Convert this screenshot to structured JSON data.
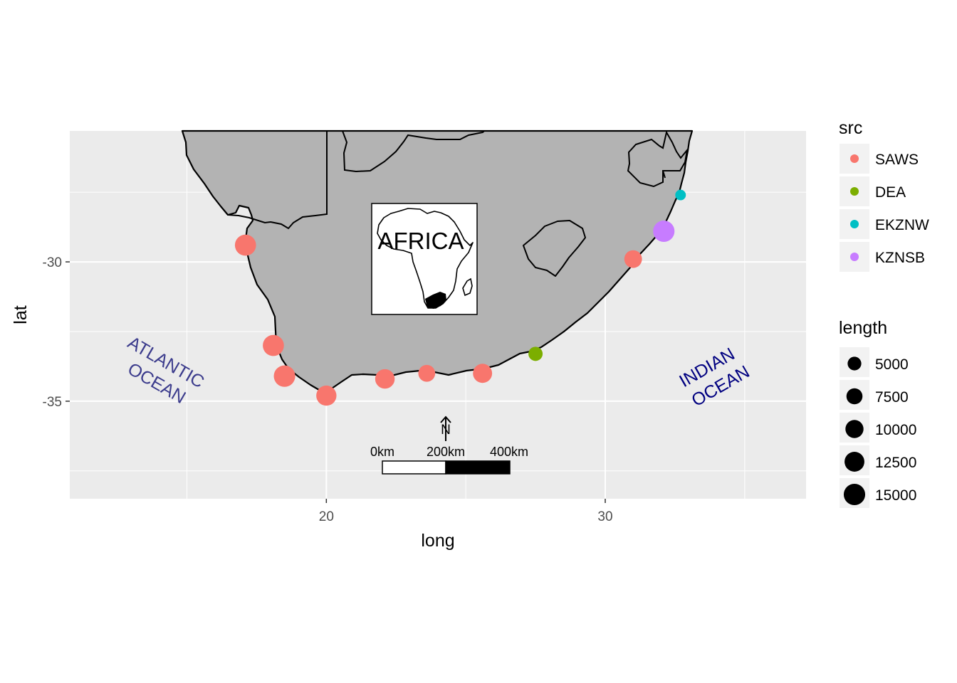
{
  "chart_data": {
    "type": "scatter",
    "title": "",
    "xlabel": "long",
    "ylabel": "lat",
    "xlim": [
      10.8,
      37.2
    ],
    "ylim": [
      -38.5,
      -25.3
    ],
    "x_ticks": [
      20,
      30
    ],
    "y_ticks": [
      -30,
      -35
    ],
    "x_tick_labels": [
      "20",
      "30"
    ],
    "y_tick_labels": [
      "-30",
      "-35"
    ],
    "grid": true,
    "panel_background": "#ebebeb",
    "land_color": "#b3b3b3",
    "legend_position": "right",
    "color_legend": {
      "title": "src",
      "entries": [
        {
          "label": "SAWS",
          "color": "#f8766d"
        },
        {
          "label": "DEA",
          "color": "#7cae00"
        },
        {
          "label": "EKZNW",
          "color": "#00bfc4"
        },
        {
          "label": "KZNSB",
          "color": "#c77cff"
        }
      ]
    },
    "size_legend": {
      "title": "length",
      "breaks": [
        {
          "label": "5000",
          "value": 5000
        },
        {
          "label": "7500",
          "value": 7500
        },
        {
          "label": "10000",
          "value": 10000
        },
        {
          "label": "12500",
          "value": 12500
        },
        {
          "label": "15000",
          "value": 15000
        }
      ]
    },
    "points": [
      {
        "long": 17.1,
        "lat": -29.4,
        "src": "SAWS",
        "length": 14500
      },
      {
        "long": 18.1,
        "lat": -33.0,
        "src": "SAWS",
        "length": 14500
      },
      {
        "long": 18.5,
        "lat": -34.1,
        "src": "SAWS",
        "length": 15000
      },
      {
        "long": 20.0,
        "lat": -34.8,
        "src": "SAWS",
        "length": 13000
      },
      {
        "long": 22.1,
        "lat": -34.2,
        "src": "SAWS",
        "length": 12000
      },
      {
        "long": 23.6,
        "lat": -34.0,
        "src": "SAWS",
        "length": 8500
      },
      {
        "long": 25.6,
        "lat": -34.0,
        "src": "SAWS",
        "length": 11500
      },
      {
        "long": 27.5,
        "lat": -33.3,
        "src": "DEA",
        "length": 5500
      },
      {
        "long": 31.0,
        "lat": -29.9,
        "src": "SAWS",
        "length": 9500
      },
      {
        "long": 32.1,
        "lat": -28.9,
        "src": "KZNSB",
        "length": 15000
      },
      {
        "long": 32.7,
        "lat": -27.6,
        "src": "EKZNW",
        "length": 2500
      }
    ],
    "annotations": [
      {
        "text": [
          "ATLANTIC",
          "OCEAN"
        ],
        "long": 14.3,
        "lat": -33.6,
        "angle": 30,
        "color": "#3b3b8c"
      },
      {
        "text": [
          "INDIAN",
          "OCEAN"
        ],
        "long": 34.2,
        "lat": -33.5,
        "angle": -30,
        "color": "#000080"
      }
    ],
    "inset_map": {
      "label": "AFRICA"
    },
    "north_arrow": {
      "label": "N"
    },
    "scale_bar": {
      "labels": [
        "0km",
        "200km",
        "400km"
      ]
    }
  }
}
